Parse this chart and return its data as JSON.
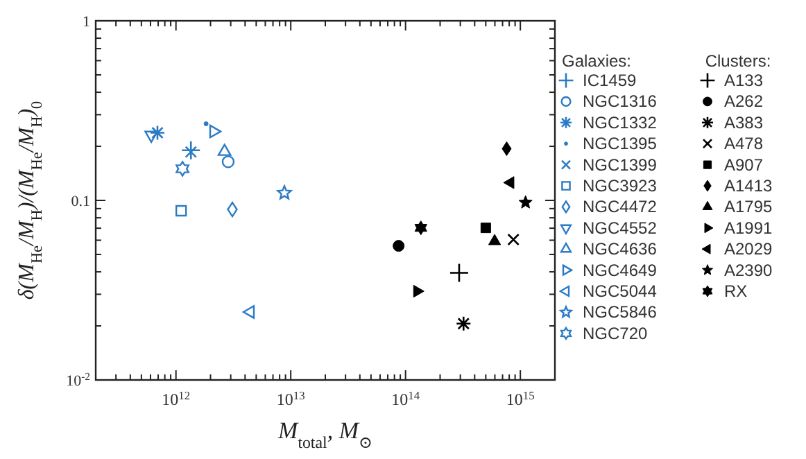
{
  "chart_data": {
    "type": "scatter",
    "xlabel": "M$_{total}$, M$_{⊙}$",
    "ylabel": "δ(M$_{He}$/M$_{H}$)/(M$_{He}$/M$_{H}$)$_{0}$",
    "legend_title": [
      "Galaxies:",
      "Clusters:"
    ],
    "legend": "right",
    "grid": false,
    "log": "xy",
    "xlim": [
      200000000000.0,
      2000000000000000.0
    ],
    "ylim": [
      0.01,
      1
    ],
    "xticks": [
      {
        "value": 200000000000.0,
        "label": null
      },
      {
        "value": 300000000000.0,
        "label": null
      },
      {
        "value": 400000000000.0,
        "label": null
      },
      {
        "value": 500000000000.0,
        "label": null
      },
      {
        "value": 600000000000.0,
        "label": null
      },
      {
        "value": 700000000000.0,
        "label": null
      },
      {
        "value": 800000000000.0,
        "label": null
      },
      {
        "value": 900000000000.0,
        "label": null
      },
      {
        "value": 1000000000000.0,
        "label": "10$^{12}$"
      },
      {
        "value": 2000000000000.0,
        "label": null
      },
      {
        "value": 3000000000000.0,
        "label": null
      },
      {
        "value": 4000000000000.0,
        "label": null
      },
      {
        "value": 5000000000000.0,
        "label": null
      },
      {
        "value": 6000000000000.0,
        "label": null
      },
      {
        "value": 7000000000000.0,
        "label": null
      },
      {
        "value": 8000000000000.0,
        "label": null
      },
      {
        "value": 9000000000000.0,
        "label": null
      },
      {
        "value": 10000000000000.0,
        "label": "10$^{13}$"
      },
      {
        "value": 20000000000000.0,
        "label": null
      },
      {
        "value": 30000000000000.0,
        "label": null
      },
      {
        "value": 40000000000000.0,
        "label": null
      },
      {
        "value": 50000000000000.0,
        "label": null
      },
      {
        "value": 60000000000000.0,
        "label": null
      },
      {
        "value": 70000000000000.0,
        "label": null
      },
      {
        "value": 80000000000000.0,
        "label": null
      },
      {
        "value": 90000000000000.0,
        "label": null
      },
      {
        "value": 100000000000000.0,
        "label": "10$^{14}$"
      },
      {
        "value": 200000000000000.0,
        "label": null
      },
      {
        "value": 300000000000000.0,
        "label": null
      },
      {
        "value": 400000000000000.0,
        "label": null
      },
      {
        "value": 500000000000000.0,
        "label": null
      },
      {
        "value": 600000000000000.0,
        "label": null
      },
      {
        "value": 700000000000000.0,
        "label": null
      },
      {
        "value": 800000000000000.0,
        "label": null
      },
      {
        "value": 900000000000000.0,
        "label": null
      },
      {
        "value": 1000000000000000.0,
        "label": "10$^{15}$"
      },
      {
        "value": 2000000000000000.0,
        "label": null
      }
    ],
    "yticks": [
      {
        "value": 0.01,
        "label": "10$^{-2}$"
      },
      {
        "value": 0.02,
        "label": null
      },
      {
        "value": 0.03,
        "label": null
      },
      {
        "value": 0.04,
        "label": null
      },
      {
        "value": 0.05,
        "label": null
      },
      {
        "value": 0.06,
        "label": null
      },
      {
        "value": 0.07,
        "label": null
      },
      {
        "value": 0.08,
        "label": null
      },
      {
        "value": 0.09,
        "label": null
      },
      {
        "value": 0.1,
        "label": "0.1"
      },
      {
        "value": 0.2,
        "label": null
      },
      {
        "value": 0.3,
        "label": null
      },
      {
        "value": 0.4,
        "label": null
      },
      {
        "value": 0.5,
        "label": null
      },
      {
        "value": 0.6,
        "label": null
      },
      {
        "value": 0.7,
        "label": null
      },
      {
        "value": 0.8,
        "label": null
      },
      {
        "value": 0.9,
        "label": null
      },
      1
    ],
    "series": [
      {
        "name": "IC1459",
        "color": "#2b7bc4",
        "marker": "plus",
        "x": [
          1350000000000.0
        ],
        "values": [
          0.19
        ]
      },
      {
        "name": "NGC1316",
        "color": "#2b7bc4",
        "marker": "circle-open",
        "x": [
          2850000000000.0
        ],
        "values": [
          0.164
        ]
      },
      {
        "name": "NGC1332",
        "color": "#2b7bc4",
        "marker": "cross",
        "x": [
          690000000000.0
        ],
        "values": [
          0.238
        ]
      },
      {
        "name": "NGC1395",
        "color": "#2b7bc4",
        "marker": "point",
        "x": [
          1830000000000.0
        ],
        "values": [
          0.267
        ]
      },
      {
        "name": "NGC1399",
        "color": "#2b7bc4",
        "marker": "x",
        "x": [
          1350000000000.0
        ],
        "values": [
          0.186
        ]
      },
      {
        "name": "NGC3923",
        "color": "#2b7bc4",
        "marker": "square-open",
        "x": [
          1110000000000.0
        ],
        "values": [
          0.0875
        ]
      },
      {
        "name": "NGC4472",
        "color": "#2b7bc4",
        "marker": "diamond-open",
        "x": [
          3100000000000.0
        ],
        "values": [
          0.089
        ]
      },
      {
        "name": "NGC4552",
        "color": "#2b7bc4",
        "marker": "triangle-down-open",
        "x": [
          610000000000.0
        ],
        "values": [
          0.231
        ]
      },
      {
        "name": "NGC4636",
        "color": "#2b7bc4",
        "marker": "triangle-open",
        "x": [
          2650000000000.0
        ],
        "values": [
          0.187
        ]
      },
      {
        "name": "NGC4649",
        "color": "#2b7bc4",
        "marker": "triangle-right-open",
        "x": [
          2130000000000.0
        ],
        "values": [
          0.242
        ]
      },
      {
        "name": "NGC5044",
        "color": "#2b7bc4",
        "marker": "triangle-left-open",
        "x": [
          4450000000000.0
        ],
        "values": [
          0.0239
        ]
      },
      {
        "name": "NGC5846",
        "color": "#2b7bc4",
        "marker": "star-open",
        "x": [
          8800000000000.0
        ],
        "values": [
          0.11
        ]
      },
      {
        "name": "NGC720",
        "color": "#2b7bc4",
        "marker": "cross-hexagram-open",
        "x": [
          1140000000000.0
        ],
        "values": [
          0.15
        ]
      },
      {
        "name": "A133",
        "color": "#000000",
        "marker": "plus",
        "x": [
          293000000000000.0
        ],
        "values": [
          0.0395
        ]
      },
      {
        "name": "A262",
        "color": "#000000",
        "marker": "circle",
        "x": [
          87000000000000.0
        ],
        "values": [
          0.0558
        ]
      },
      {
        "name": "A383",
        "color": "#000000",
        "marker": "cross",
        "x": [
          320000000000000.0
        ],
        "values": [
          0.0206
        ]
      },
      {
        "name": "A478",
        "color": "#000000",
        "marker": "x",
        "x": [
          870000000000000.0
        ],
        "values": [
          0.0605
        ]
      },
      {
        "name": "A907",
        "color": "#000000",
        "marker": "square",
        "x": [
          500000000000000.0
        ],
        "values": [
          0.0703
        ]
      },
      {
        "name": "A1413",
        "color": "#000000",
        "marker": "diamond",
        "x": [
          760000000000000.0
        ],
        "values": [
          0.194
        ]
      },
      {
        "name": "A1795",
        "color": "#000000",
        "marker": "triangle",
        "x": [
          597000000000000.0
        ],
        "values": [
          0.0592
        ]
      },
      {
        "name": "A1991",
        "color": "#000000",
        "marker": "triangle-right",
        "x": [
          126000000000000.0
        ],
        "values": [
          0.0312
        ]
      },
      {
        "name": "A2029",
        "color": "#000000",
        "marker": "triangle-left",
        "x": [
          820000000000000.0
        ],
        "values": [
          0.1256
        ]
      },
      {
        "name": "A2390",
        "color": "#000000",
        "marker": "star",
        "x": [
          1110000000000000.0
        ],
        "values": [
          0.0973
        ]
      },
      {
        "name": "RX",
        "color": "#000000",
        "marker": "cross-hexagram",
        "x": [
          136000000000000.0
        ],
        "values": [
          0.0703
        ]
      }
    ]
  }
}
